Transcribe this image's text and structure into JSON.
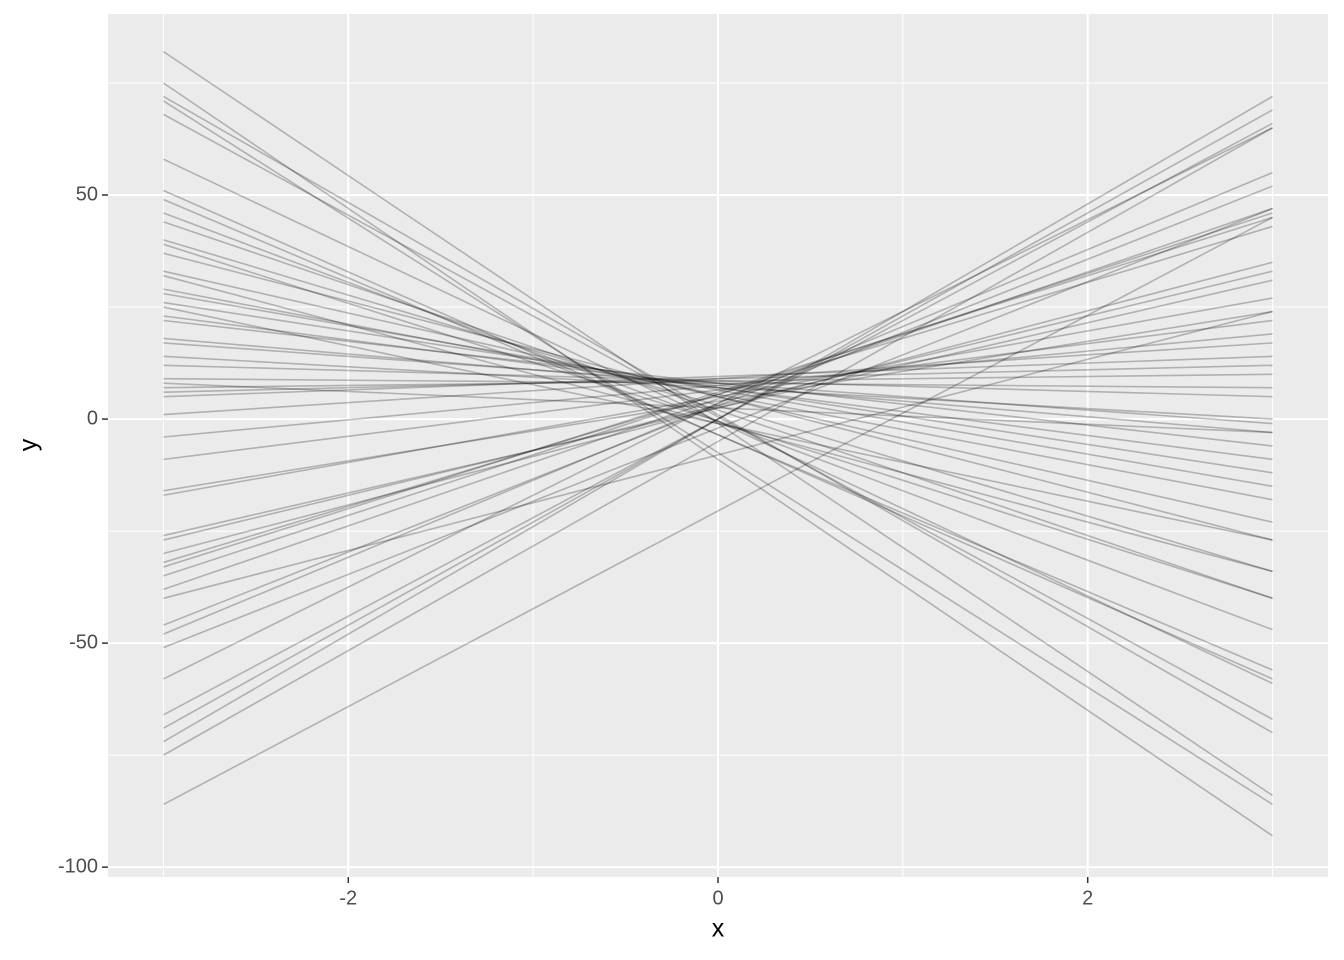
{
  "chart_data": {
    "type": "line",
    "x_label": "x",
    "y_label": "y",
    "x": [
      -3,
      3
    ],
    "color": "#000000",
    "opacity": 0.25,
    "xlim": [
      -3.3,
      3.3
    ],
    "ylim": [
      -102.2,
      90.4
    ],
    "xticks": [
      -2,
      0,
      2
    ],
    "yticks": [
      -100,
      -50,
      0,
      50
    ],
    "minor_xticks": [
      -3,
      -1,
      1,
      3
    ],
    "minor_yticks": [
      -75,
      -25,
      25,
      75
    ],
    "grid": true,
    "series": [
      {
        "values": [
          82,
          -84
        ]
      },
      {
        "values": [
          75,
          -93
        ]
      },
      {
        "values": [
          72,
          -70
        ]
      },
      {
        "values": [
          71,
          -86
        ]
      },
      {
        "values": [
          68,
          -67
        ]
      },
      {
        "values": [
          58,
          -59
        ]
      },
      {
        "values": [
          51,
          -58
        ]
      },
      {
        "values": [
          49,
          -56
        ]
      },
      {
        "values": [
          46,
          -47
        ]
      },
      {
        "values": [
          44,
          -40
        ]
      },
      {
        "values": [
          40,
          -34
        ]
      },
      {
        "values": [
          39,
          -40
        ]
      },
      {
        "values": [
          37,
          -27
        ]
      },
      {
        "values": [
          33,
          -23
        ]
      },
      {
        "values": [
          32,
          -34
        ]
      },
      {
        "values": [
          29,
          -18
        ]
      },
      {
        "values": [
          28,
          -15
        ]
      },
      {
        "values": [
          26,
          -12
        ]
      },
      {
        "values": [
          25,
          -27
        ]
      },
      {
        "values": [
          23,
          -9
        ]
      },
      {
        "values": [
          22,
          -6
        ]
      },
      {
        "values": [
          18,
          -3
        ]
      },
      {
        "values": [
          17,
          -1
        ]
      },
      {
        "values": [
          14,
          0
        ]
      },
      {
        "values": [
          12,
          5
        ]
      },
      {
        "values": [
          9,
          7
        ]
      },
      {
        "values": [
          8,
          -3
        ]
      },
      {
        "values": [
          7,
          10
        ]
      },
      {
        "values": [
          6,
          12
        ]
      },
      {
        "values": [
          5,
          14
        ]
      },
      {
        "values": [
          1,
          17
        ]
      },
      {
        "values": [
          -4,
          19
        ]
      },
      {
        "values": [
          -9,
          22
        ]
      },
      {
        "values": [
          -16,
          24
        ]
      },
      {
        "values": [
          -17,
          27
        ]
      },
      {
        "values": [
          -26,
          31
        ]
      },
      {
        "values": [
          -27,
          33
        ]
      },
      {
        "values": [
          -30,
          35
        ]
      },
      {
        "values": [
          -32,
          43
        ]
      },
      {
        "values": [
          -33,
          45
        ]
      },
      {
        "values": [
          -35,
          46
        ]
      },
      {
        "values": [
          -38,
          47
        ]
      },
      {
        "values": [
          -40,
          24
        ]
      },
      {
        "values": [
          -46,
          52
        ]
      },
      {
        "values": [
          -48,
          55
        ]
      },
      {
        "values": [
          -51,
          47
        ]
      },
      {
        "values": [
          -58,
          65
        ]
      },
      {
        "values": [
          -66,
          66
        ]
      },
      {
        "values": [
          -69,
          69
        ]
      },
      {
        "values": [
          -72,
          72
        ]
      },
      {
        "values": [
          -75,
          65
        ]
      },
      {
        "values": [
          -86,
          45
        ]
      }
    ]
  }
}
